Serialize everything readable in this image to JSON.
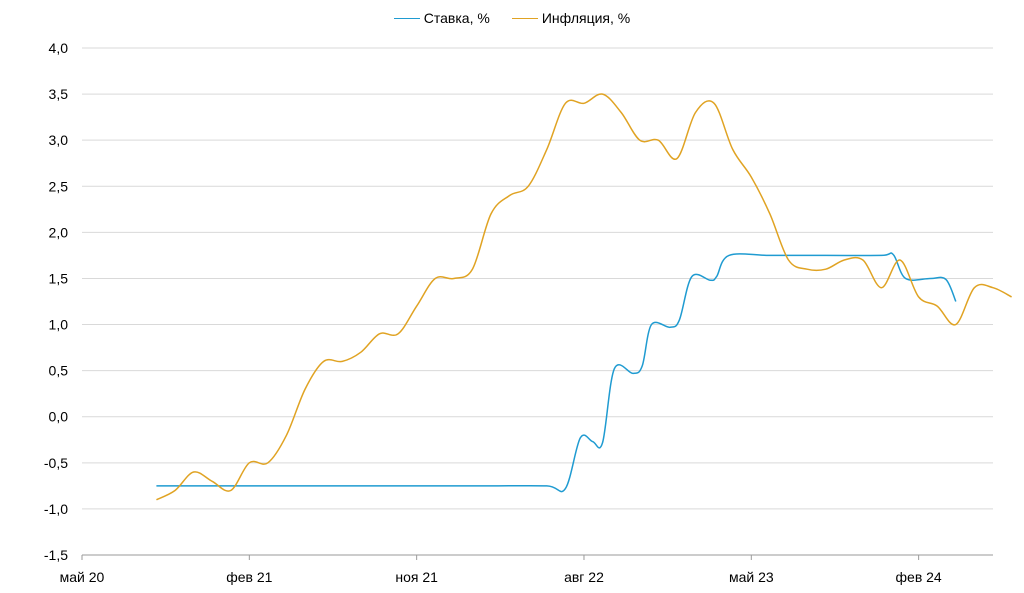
{
  "chart_data": {
    "type": "line",
    "title": "",
    "xlabel": "",
    "ylabel": "",
    "ylim": [
      -1.5,
      4.0
    ],
    "y_ticks": [
      "4,0",
      "3,5",
      "3,0",
      "2,5",
      "2,0",
      "1,5",
      "1,0",
      "0,5",
      "0,0",
      "-0,5",
      "-1,0",
      "-1,5"
    ],
    "x_range": [
      "2020-05",
      "2024-06"
    ],
    "x_ticks": [
      {
        "date": "2020-05",
        "label": "май 20"
      },
      {
        "date": "2021-02",
        "label": "фев 21"
      },
      {
        "date": "2021-11",
        "label": "ноя 21"
      },
      {
        "date": "2022-08",
        "label": "авг 22"
      },
      {
        "date": "2023-05",
        "label": "май 23"
      },
      {
        "date": "2024-02",
        "label": "фев 24"
      }
    ],
    "grid": "horizontal",
    "legend_position": "top-center",
    "series": [
      {
        "name": "Ставка, %",
        "color": "#1f9bd1",
        "points": [
          [
            "2020-09",
            -0.75
          ],
          [
            "2020-12",
            -0.75
          ],
          [
            "2021-03",
            -0.75
          ],
          [
            "2021-06",
            -0.75
          ],
          [
            "2021-09",
            -0.75
          ],
          [
            "2021-12",
            -0.75
          ],
          [
            "2022-03",
            -0.75
          ],
          [
            "2022-06",
            -0.75
          ],
          [
            "2022-07",
            -0.78
          ],
          [
            "2022-07-25",
            -0.23
          ],
          [
            "2022-08-15",
            -0.27
          ],
          [
            "2022-09-01",
            -0.28
          ],
          [
            "2022-09-20",
            0.52
          ],
          [
            "2022-10-20",
            0.47
          ],
          [
            "2022-11-05",
            0.55
          ],
          [
            "2022-11-20",
            1.0
          ],
          [
            "2022-12-20",
            0.97
          ],
          [
            "2023-01-05",
            1.05
          ],
          [
            "2023-01-25",
            1.52
          ],
          [
            "2023-02-25",
            1.48
          ],
          [
            "2023-03-05",
            1.52
          ],
          [
            "2023-03-25",
            1.75
          ],
          [
            "2023-06-01",
            1.75
          ],
          [
            "2023-09-01",
            1.75
          ],
          [
            "2023-12-01",
            1.75
          ],
          [
            "2023-12-20",
            1.76
          ],
          [
            "2024-01-10",
            1.5
          ],
          [
            "2024-02-20",
            1.5
          ],
          [
            "2024-03-15",
            1.49
          ],
          [
            "2024-04-01",
            1.25
          ]
        ]
      },
      {
        "name": "Инфляция, %",
        "color": "#e0a323",
        "points": [
          [
            "2020-09",
            -0.9
          ],
          [
            "2020-10",
            -0.8
          ],
          [
            "2020-11",
            -0.6
          ],
          [
            "2020-12",
            -0.7
          ],
          [
            "2021-01",
            -0.8
          ],
          [
            "2021-02",
            -0.5
          ],
          [
            "2021-03",
            -0.5
          ],
          [
            "2021-04",
            -0.2
          ],
          [
            "2021-05",
            0.3
          ],
          [
            "2021-06",
            0.6
          ],
          [
            "2021-07",
            0.6
          ],
          [
            "2021-08",
            0.7
          ],
          [
            "2021-09",
            0.9
          ],
          [
            "2021-10",
            0.9
          ],
          [
            "2021-11",
            1.2
          ],
          [
            "2021-12",
            1.5
          ],
          [
            "2022-01",
            1.5
          ],
          [
            "2022-02",
            1.6
          ],
          [
            "2022-03",
            2.2
          ],
          [
            "2022-04",
            2.4
          ],
          [
            "2022-05",
            2.5
          ],
          [
            "2022-06",
            2.9
          ],
          [
            "2022-07",
            3.4
          ],
          [
            "2022-08",
            3.4
          ],
          [
            "2022-09",
            3.5
          ],
          [
            "2022-10",
            3.3
          ],
          [
            "2022-11",
            3.0
          ],
          [
            "2022-12",
            3.0
          ],
          [
            "2023-01",
            2.8
          ],
          [
            "2023-02",
            3.3
          ],
          [
            "2023-03",
            3.4
          ],
          [
            "2023-04",
            2.9
          ],
          [
            "2023-05",
            2.6
          ],
          [
            "2023-06",
            2.2
          ],
          [
            "2023-07",
            1.7
          ],
          [
            "2023-08",
            1.6
          ],
          [
            "2023-09",
            1.6
          ],
          [
            "2023-10",
            1.7
          ],
          [
            "2023-11",
            1.7
          ],
          [
            "2023-12",
            1.4
          ],
          [
            "2024-01",
            1.7
          ],
          [
            "2024-02",
            1.3
          ],
          [
            "2024-03",
            1.2
          ],
          [
            "2024-04",
            1.0
          ],
          [
            "2024-05",
            1.4
          ],
          [
            "2024-06",
            1.4
          ],
          [
            "2024-07",
            1.3
          ]
        ]
      }
    ]
  }
}
